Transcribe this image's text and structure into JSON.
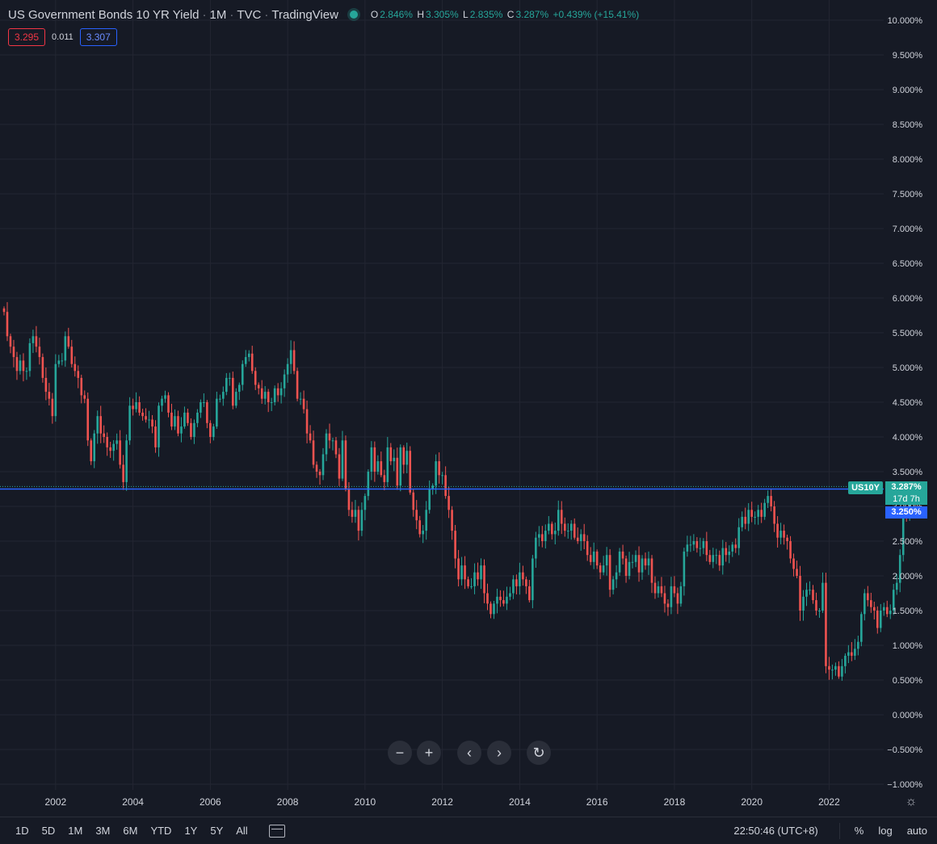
{
  "header": {
    "title": "US Government Bonds 10 YR Yield",
    "interval": "1M",
    "exchange": "TVC",
    "source": "TradingView",
    "ohlc": {
      "o_label": "O",
      "o": "2.846%",
      "h_label": "H",
      "h": "3.305%",
      "l_label": "L",
      "l": "2.835%",
      "c_label": "C",
      "c": "3.287%",
      "change": "+0.439% (+15.41%)"
    }
  },
  "quote": {
    "bid": "3.295",
    "spread": "0.011",
    "ask": "3.307"
  },
  "price_labels": {
    "symbol": "US10Y",
    "last": "3.287%",
    "countdown": "17d 7h",
    "hline": "3.250%"
  },
  "colors": {
    "up": "#26a69a",
    "down": "#ef5350",
    "accent": "#2962ff",
    "background": "#161a25",
    "grid": "#232632"
  },
  "nav_icons": [
    "minus-icon",
    "plus-icon",
    "chevron-left-icon",
    "chevron-right-icon",
    "reset-icon"
  ],
  "bottom": {
    "timeframes": [
      "1D",
      "5D",
      "1M",
      "3M",
      "6M",
      "YTD",
      "1Y",
      "5Y",
      "All"
    ],
    "clock": "22:50:46 (UTC+8)",
    "percent": "%",
    "log": "log",
    "auto": "auto"
  },
  "chart_data": {
    "type": "candlestick",
    "title": "US Government Bonds 10 YR Yield",
    "x_start": "2000-09",
    "x_interval": "1 month",
    "x_ticks": [
      "2002",
      "2004",
      "2006",
      "2008",
      "2010",
      "2012",
      "2014",
      "2016",
      "2018",
      "2020",
      "2022"
    ],
    "y_ticks": [
      "10.000%",
      "9.500%",
      "9.000%",
      "8.500%",
      "8.000%",
      "7.500%",
      "7.000%",
      "6.500%",
      "6.000%",
      "5.500%",
      "5.000%",
      "4.500%",
      "4.000%",
      "3.500%",
      "3.000%",
      "2.500%",
      "2.000%",
      "1.500%",
      "1.000%",
      "0.500%",
      "0.000%",
      "−0.500%",
      "−1.000%"
    ],
    "ylim": [
      -1.0,
      10.0
    ],
    "horizontal_line": 3.25,
    "monthly_close": [
      5.8,
      5.45,
      5.3,
      5.15,
      4.95,
      5.1,
      4.95,
      4.95,
      5.35,
      5.45,
      5.3,
      5.15,
      4.85,
      4.65,
      4.55,
      4.3,
      5.05,
      5.1,
      5.1,
      5.45,
      5.3,
      5.05,
      4.95,
      4.85,
      4.6,
      4.55,
      3.95,
      3.65,
      4.05,
      4.3,
      4.05,
      4.0,
      3.85,
      3.8,
      3.9,
      3.95,
      3.6,
      3.35,
      3.95,
      4.45,
      4.4,
      4.5,
      4.35,
      4.3,
      4.25,
      4.25,
      4.15,
      3.85,
      4.45,
      4.55,
      4.6,
      4.35,
      4.15,
      4.3,
      4.05,
      4.15,
      4.35,
      4.2,
      4.0,
      4.2,
      4.35,
      4.5,
      4.5,
      4.2,
      4.0,
      4.15,
      4.55,
      4.55,
      4.65,
      4.85,
      4.85,
      4.45,
      4.65,
      4.75,
      5.05,
      5.15,
      5.2,
      4.95,
      4.75,
      4.7,
      4.55,
      4.65,
      4.5,
      4.5,
      4.7,
      4.6,
      4.7,
      4.9,
      5.05,
      5.25,
      4.95,
      4.55,
      4.55,
      4.4,
      4.05,
      3.95,
      3.6,
      3.5,
      3.45,
      3.75,
      4.05,
      3.95,
      3.95,
      3.75,
      3.4,
      3.95,
      3.25,
      2.95,
      2.85,
      2.95,
      2.65,
      2.95,
      3.15,
      3.5,
      3.85,
      3.5,
      3.65,
      3.45,
      3.35,
      3.85,
      3.65,
      3.7,
      3.3,
      3.85,
      3.6,
      3.8,
      3.2,
      2.95,
      2.8,
      2.6,
      2.65,
      2.95,
      3.25,
      3.3,
      3.65,
      3.45,
      3.45,
      3.15,
      2.95,
      2.65,
      2.25,
      1.95,
      2.15,
      1.95,
      1.85,
      1.85,
      2.05,
      1.95,
      2.15,
      1.75,
      1.6,
      1.45,
      1.6,
      1.7,
      1.65,
      1.6,
      1.7,
      1.75,
      1.95,
      1.85,
      2.05,
      1.95,
      1.85,
      1.65,
      2.25,
      2.55,
      2.6,
      2.5,
      2.65,
      2.75,
      2.6,
      2.65,
      2.95,
      2.75,
      2.65,
      2.65,
      2.75,
      2.55,
      2.5,
      2.6,
      2.5,
      2.3,
      2.2,
      2.35,
      2.15,
      2.05,
      2.15,
      2.3,
      1.8,
      1.95,
      2.05,
      2.35,
      2.25,
      2.0,
      2.2,
      2.2,
      2.3,
      2.05,
      2.25,
      2.15,
      2.25,
      1.9,
      1.75,
      1.85,
      1.75,
      1.6,
      1.55,
      1.85,
      1.75,
      1.6,
      1.85,
      2.35,
      2.45,
      2.45,
      2.5,
      2.4,
      2.4,
      2.5,
      2.3,
      2.2,
      2.3,
      2.3,
      2.15,
      2.4,
      2.3,
      2.35,
      2.45,
      2.4,
      2.7,
      2.85,
      2.75,
      2.95,
      2.85,
      2.85,
      2.95,
      2.85,
      3.05,
      3.15,
      3.0,
      2.75,
      2.55,
      2.65,
      2.55,
      2.5,
      2.25,
      2.1,
      2.0,
      1.5,
      1.7,
      1.8,
      1.8,
      1.65,
      1.5,
      1.5,
      1.9,
      0.7,
      0.65,
      0.65,
      0.7,
      0.55,
      0.7,
      0.85,
      0.9,
      0.85,
      0.95,
      1.05,
      1.45,
      1.75,
      1.65,
      1.55,
      1.5,
      1.25,
      1.5,
      1.55,
      1.45,
      1.5,
      1.8,
      1.9,
      2.3,
      2.9,
      2.85,
      3.287
    ]
  }
}
